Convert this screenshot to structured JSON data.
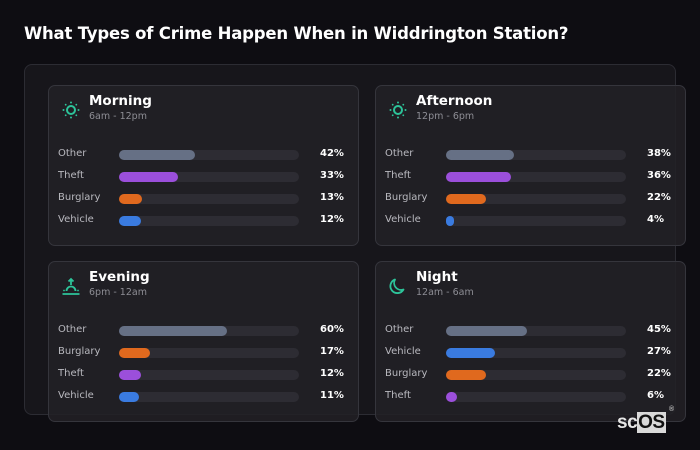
{
  "title": "What Types of Crime Happen When in Widdrington Station?",
  "colors": {
    "Other": "#667085",
    "Theft": "#9b4fdb",
    "Burglary": "#e0691e",
    "Vehicle": "#3a7be0",
    "icon_accent": "#2dc49a"
  },
  "cards": [
    {
      "name": "Morning",
      "range": "6am - 12pm",
      "icon": "sun-icon",
      "rows": [
        {
          "label": "Other",
          "value": 42,
          "pct": "42%"
        },
        {
          "label": "Theft",
          "value": 33,
          "pct": "33%"
        },
        {
          "label": "Burglary",
          "value": 13,
          "pct": "13%"
        },
        {
          "label": "Vehicle",
          "value": 12,
          "pct": "12%"
        }
      ]
    },
    {
      "name": "Afternoon",
      "range": "12pm - 6pm",
      "icon": "sun-icon",
      "rows": [
        {
          "label": "Other",
          "value": 38,
          "pct": "38%"
        },
        {
          "label": "Theft",
          "value": 36,
          "pct": "36%"
        },
        {
          "label": "Burglary",
          "value": 22,
          "pct": "22%"
        },
        {
          "label": "Vehicle",
          "value": 4,
          "pct": "4%"
        }
      ]
    },
    {
      "name": "Evening",
      "range": "6pm - 12am",
      "icon": "sunset-icon",
      "rows": [
        {
          "label": "Other",
          "value": 60,
          "pct": "60%"
        },
        {
          "label": "Burglary",
          "value": 17,
          "pct": "17%"
        },
        {
          "label": "Theft",
          "value": 12,
          "pct": "12%"
        },
        {
          "label": "Vehicle",
          "value": 11,
          "pct": "11%"
        }
      ]
    },
    {
      "name": "Night",
      "range": "12am - 6am",
      "icon": "moon-icon",
      "rows": [
        {
          "label": "Other",
          "value": 45,
          "pct": "45%"
        },
        {
          "label": "Vehicle",
          "value": 27,
          "pct": "27%"
        },
        {
          "label": "Burglary",
          "value": 22,
          "pct": "22%"
        },
        {
          "label": "Theft",
          "value": 6,
          "pct": "6%"
        }
      ]
    }
  ],
  "logo": {
    "sc": "sc",
    "os": "OS",
    "reg": "®"
  },
  "chart_data": {
    "type": "bar",
    "title": "What Types of Crime Happen When in Widdrington Station?",
    "orientation": "horizontal",
    "panels": [
      {
        "title": "Morning",
        "subtitle": "6am - 12pm",
        "categories": [
          "Other",
          "Theft",
          "Burglary",
          "Vehicle"
        ],
        "values": [
          42,
          33,
          13,
          12
        ]
      },
      {
        "title": "Afternoon",
        "subtitle": "12pm - 6pm",
        "categories": [
          "Other",
          "Theft",
          "Burglary",
          "Vehicle"
        ],
        "values": [
          38,
          36,
          22,
          4
        ]
      },
      {
        "title": "Evening",
        "subtitle": "6pm - 12am",
        "categories": [
          "Other",
          "Burglary",
          "Theft",
          "Vehicle"
        ],
        "values": [
          60,
          17,
          12,
          11
        ]
      },
      {
        "title": "Night",
        "subtitle": "12am - 6am",
        "categories": [
          "Other",
          "Vehicle",
          "Burglary",
          "Theft"
        ],
        "values": [
          45,
          27,
          22,
          6
        ]
      }
    ],
    "xlim": [
      0,
      100
    ],
    "unit": "%",
    "grid": false,
    "legend": "none"
  }
}
